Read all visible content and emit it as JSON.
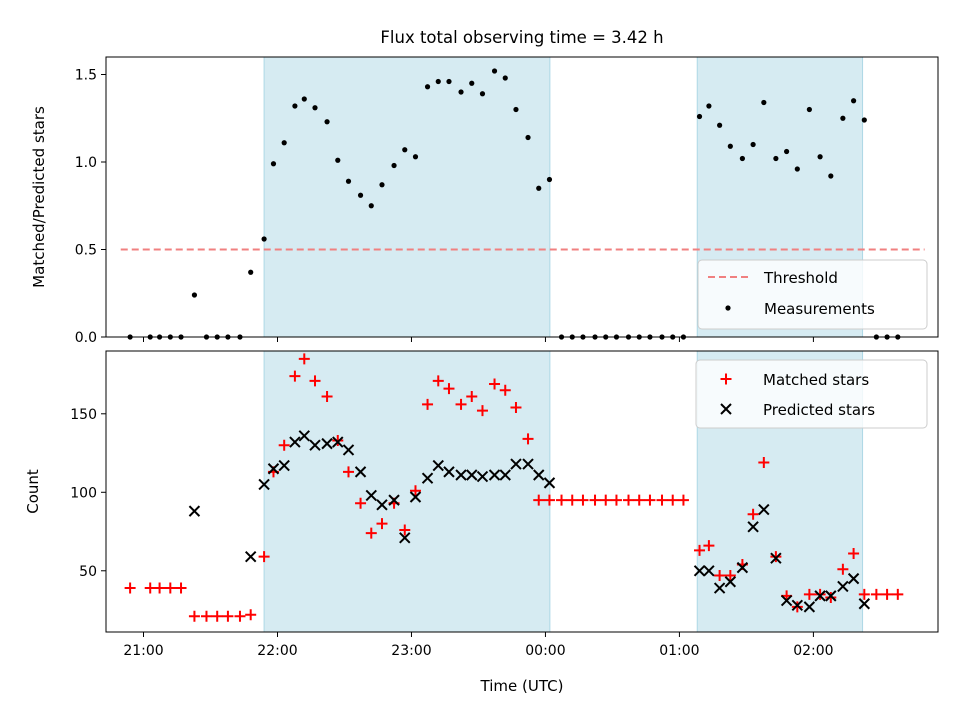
{
  "title": "Flux total observing time = 3.42 h",
  "colors": {
    "shade": "#add8e6",
    "threshold": "#f08080",
    "matched": "#ff0000",
    "predicted": "#000000",
    "measurement": "#000000"
  },
  "chart_data": [
    {
      "type": "scatter",
      "ylabel": "Matched/Predicted stars",
      "xlabel": "",
      "xlim": [
        20.72,
        26.93
      ],
      "ylim": [
        0,
        1.6
      ],
      "yticks": [
        0.0,
        0.5,
        1.0,
        1.5
      ],
      "ytick_labels": [
        "0.0",
        "0.5",
        "1.0",
        "1.5"
      ],
      "shaded_intervals": [
        [
          21.9,
          24.033
        ],
        [
          25.133,
          26.367
        ]
      ],
      "legend_position": "lower-right",
      "threshold": {
        "name": "Threshold",
        "x": [
          20.83,
          26.83
        ],
        "y": 0.5,
        "style": "dashed"
      },
      "series": [
        {
          "name": "Measurements",
          "x": [
            20.9,
            21.05,
            21.12,
            21.2,
            21.28,
            21.38,
            21.47,
            21.55,
            21.63,
            21.72,
            21.8,
            21.9,
            21.97,
            22.05,
            22.13,
            22.2,
            22.28,
            22.37,
            22.45,
            22.53,
            22.62,
            22.7,
            22.78,
            22.87,
            22.95,
            23.03,
            23.12,
            23.2,
            23.28,
            23.37,
            23.45,
            23.53,
            23.62,
            23.7,
            23.78,
            23.87,
            23.95,
            24.03,
            24.12,
            24.2,
            24.28,
            24.37,
            24.45,
            24.53,
            24.62,
            24.7,
            24.78,
            24.87,
            24.95,
            25.03,
            25.15,
            25.22,
            25.3,
            25.38,
            25.47,
            25.55,
            25.63,
            25.72,
            25.8,
            25.88,
            25.97,
            26.05,
            26.13,
            26.22,
            26.3,
            26.38,
            26.47,
            26.55,
            26.63
          ],
          "y": [
            0.0,
            0.0,
            0.0,
            0.0,
            0.0,
            0.24,
            0.0,
            0.0,
            0.0,
            0.0,
            0.37,
            0.56,
            0.99,
            1.11,
            1.32,
            1.36,
            1.31,
            1.23,
            1.01,
            0.89,
            0.81,
            0.75,
            0.87,
            0.98,
            1.07,
            1.03,
            1.43,
            1.46,
            1.46,
            1.4,
            1.45,
            1.39,
            1.52,
            1.48,
            1.3,
            1.14,
            0.85,
            0.9,
            0.0,
            0.0,
            0.0,
            0.0,
            0.0,
            0.0,
            0.0,
            0.0,
            0.0,
            0.0,
            0.0,
            0.0,
            1.26,
            1.32,
            1.21,
            1.09,
            1.02,
            1.1,
            1.34,
            1.02,
            1.06,
            0.96,
            1.3,
            1.03,
            0.92,
            1.25,
            1.35,
            1.24,
            0.0,
            0.0,
            0.0
          ]
        }
      ]
    },
    {
      "type": "scatter",
      "ylabel": "Count",
      "xlabel": "Time (UTC)",
      "xlim": [
        20.72,
        26.93
      ],
      "ylim": [
        11,
        190
      ],
      "yticks": [
        50,
        100,
        150
      ],
      "ytick_labels": [
        "50",
        "100",
        "150"
      ],
      "xticks": [
        21,
        22,
        23,
        24,
        25,
        26
      ],
      "xtick_labels": [
        "21:00",
        "22:00",
        "23:00",
        "00:00",
        "01:00",
        "02:00"
      ],
      "shaded_intervals": [
        [
          21.9,
          24.033
        ],
        [
          25.133,
          26.367
        ]
      ],
      "legend_position": "upper-right",
      "series": [
        {
          "name": "Matched stars",
          "marker": "plus",
          "x": [
            20.9,
            21.05,
            21.12,
            21.2,
            21.28,
            21.38,
            21.47,
            21.55,
            21.63,
            21.72,
            21.8,
            21.9,
            21.97,
            22.05,
            22.13,
            22.2,
            22.28,
            22.37,
            22.45,
            22.53,
            22.62,
            22.7,
            22.78,
            22.87,
            22.95,
            23.03,
            23.12,
            23.2,
            23.28,
            23.37,
            23.45,
            23.53,
            23.62,
            23.7,
            23.78,
            23.87,
            23.95,
            24.03,
            24.12,
            24.2,
            24.28,
            24.37,
            24.45,
            24.53,
            24.62,
            24.7,
            24.78,
            24.87,
            24.95,
            25.03,
            25.15,
            25.22,
            25.3,
            25.38,
            25.47,
            25.55,
            25.63,
            25.72,
            25.8,
            25.88,
            25.97,
            26.05,
            26.13,
            26.22,
            26.3,
            26.38,
            26.47,
            26.55,
            26.63
          ],
          "y": [
            39,
            39,
            39,
            39,
            39,
            21,
            21,
            21,
            21,
            21,
            22,
            59,
            113,
            130,
            174,
            185,
            171,
            161,
            133,
            113,
            93,
            74,
            80,
            93,
            76,
            101,
            156,
            171,
            166,
            156,
            161,
            152,
            169,
            165,
            154,
            134,
            95,
            95,
            95,
            95,
            95,
            95,
            95,
            95,
            95,
            95,
            95,
            95,
            95,
            95,
            63,
            66,
            47,
            47,
            54,
            86,
            119,
            59,
            34,
            27,
            35,
            35,
            33,
            51,
            61,
            35,
            35,
            35,
            35
          ]
        },
        {
          "name": "Predicted stars",
          "marker": "x",
          "x": [
            21.38,
            21.8,
            21.9,
            21.97,
            22.05,
            22.13,
            22.2,
            22.28,
            22.37,
            22.45,
            22.53,
            22.62,
            22.7,
            22.78,
            22.87,
            22.95,
            23.03,
            23.12,
            23.2,
            23.28,
            23.37,
            23.45,
            23.53,
            23.62,
            23.7,
            23.78,
            23.87,
            23.95,
            24.03,
            25.15,
            25.22,
            25.3,
            25.38,
            25.47,
            25.55,
            25.63,
            25.72,
            25.8,
            25.88,
            25.97,
            26.05,
            26.13,
            26.22,
            26.3,
            26.38
          ],
          "y": [
            88,
            59,
            105,
            115,
            117,
            132,
            136,
            130,
            131,
            132,
            127,
            113,
            98,
            92,
            95,
            71,
            97,
            109,
            117,
            113,
            111,
            111,
            110,
            111,
            111,
            118,
            118,
            111,
            106,
            50,
            50,
            39,
            43,
            52,
            78,
            89,
            58,
            31,
            28,
            27,
            34,
            34,
            40,
            45,
            29
          ]
        }
      ]
    }
  ]
}
